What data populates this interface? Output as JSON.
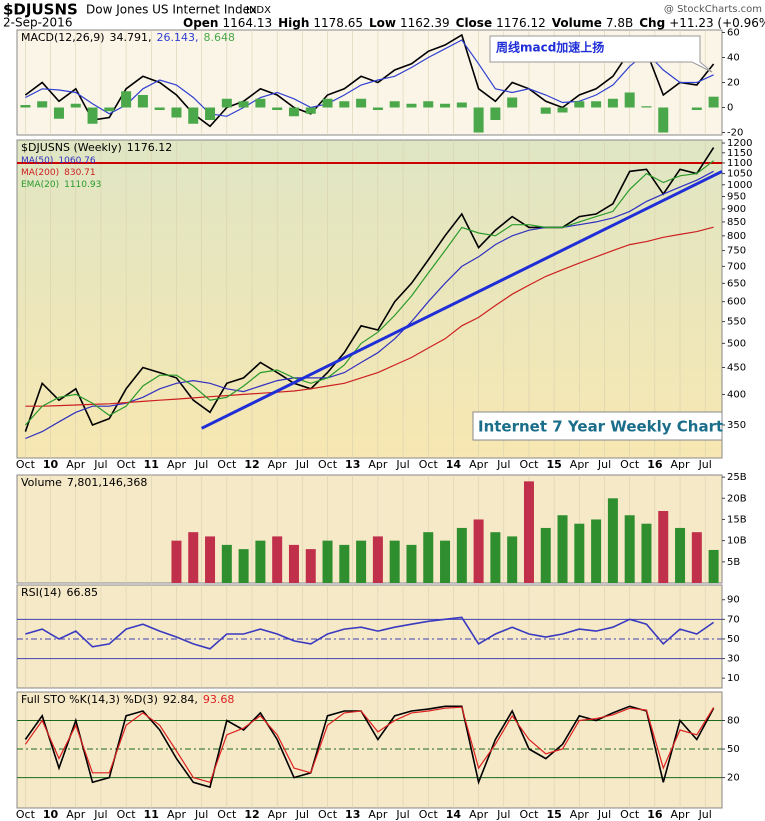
{
  "chart_data": {
    "type": "stock",
    "header": {
      "symbol": "$DJUSNS",
      "name": "Dow Jones US Internet Index",
      "exchange": "INDX",
      "date": "2-Sep-2016",
      "quote": [
        [
          "Open",
          "1164.13"
        ],
        [
          "High",
          "1178.65"
        ],
        [
          "Low",
          "1162.39"
        ],
        [
          "Close",
          "1176.12"
        ],
        [
          "Volume",
          "7.8B"
        ],
        [
          "Chg",
          "+11.23 (+0.96%)"
        ]
      ],
      "source": "@ StockCharts.com"
    },
    "x": [
      "2009-10",
      "2009-12",
      "2010-02",
      "2010-04",
      "2010-06",
      "2010-08",
      "2010-10",
      "2010-12",
      "2011-02",
      "2011-04",
      "2011-06",
      "2011-08",
      "2011-10",
      "2011-12",
      "2012-02",
      "2012-04",
      "2012-06",
      "2012-08",
      "2012-10",
      "2012-12",
      "2013-02",
      "2013-04",
      "2013-06",
      "2013-08",
      "2013-10",
      "2013-12",
      "2014-02",
      "2014-04",
      "2014-06",
      "2014-08",
      "2014-10",
      "2014-12",
      "2015-02",
      "2015-04",
      "2015-06",
      "2015-08",
      "2015-10",
      "2015-12",
      "2016-02",
      "2016-04",
      "2016-06",
      "2016-08"
    ],
    "xlim": [
      "2009-09",
      "2016-09"
    ],
    "xticks": [
      {
        "value": "2009-10",
        "label": "Oct"
      },
      {
        "value": "2010-01",
        "label": "10"
      },
      {
        "value": "2010-04",
        "label": "Apr"
      },
      {
        "value": "2010-07",
        "label": "Jul"
      },
      {
        "value": "2010-10",
        "label": "Oct"
      },
      {
        "value": "2011-01",
        "label": "11"
      },
      {
        "value": "2011-04",
        "label": "Apr"
      },
      {
        "value": "2011-07",
        "label": "Jul"
      },
      {
        "value": "2011-10",
        "label": "Oct"
      },
      {
        "value": "2012-01",
        "label": "12"
      },
      {
        "value": "2012-04",
        "label": "Apr"
      },
      {
        "value": "2012-07",
        "label": "Jul"
      },
      {
        "value": "2012-10",
        "label": "Oct"
      },
      {
        "value": "2013-01",
        "label": "13"
      },
      {
        "value": "2013-04",
        "label": "Apr"
      },
      {
        "value": "2013-07",
        "label": "Jul"
      },
      {
        "value": "2013-10",
        "label": "Oct"
      },
      {
        "value": "2014-01",
        "label": "14"
      },
      {
        "value": "2014-04",
        "label": "Apr"
      },
      {
        "value": "2014-07",
        "label": "Jul"
      },
      {
        "value": "2014-10",
        "label": "Oct"
      },
      {
        "value": "2015-01",
        "label": "15"
      },
      {
        "value": "2015-04",
        "label": "Apr"
      },
      {
        "value": "2015-07",
        "label": "Jul"
      },
      {
        "value": "2015-10",
        "label": "Oct"
      },
      {
        "value": "2016-01",
        "label": "16"
      },
      {
        "value": "2016-04",
        "label": "Apr"
      },
      {
        "value": "2016-07",
        "label": "Jul"
      }
    ],
    "panels": [
      {
        "legend": "MACD(12,26,9)",
        "ylim": [
          -22,
          62
        ],
        "yticks": [
          60,
          40,
          20,
          0,
          -20
        ],
        "background": "#fbf5e8",
        "annotation": "周线macd加速上扬",
        "series": [
          {
            "type": "line",
            "color": "#000000",
            "last_label": "34.791,",
            "values": [
              10,
              20,
              5,
              15,
              -10,
              -8,
              15,
              25,
              20,
              10,
              -5,
              -15,
              0,
              5,
              15,
              10,
              0,
              -5,
              10,
              15,
              25,
              20,
              30,
              35,
              45,
              50,
              58,
              15,
              5,
              20,
              15,
              5,
              0,
              10,
              15,
              25,
              45,
              45,
              10,
              20,
              18,
              34.791
            ]
          },
          {
            "type": "line",
            "color": "#3040d0",
            "last_label": "26.143,",
            "values": [
              8,
              15,
              14,
              12,
              3,
              -5,
              2,
              15,
              22,
              18,
              8,
              -5,
              -7,
              0,
              8,
              12,
              7,
              0,
              3,
              10,
              18,
              22,
              25,
              32,
              40,
              47,
              54,
              35,
              15,
              12,
              15,
              10,
              4,
              5,
              10,
              18,
              33,
              44,
              30,
              20,
              20,
              26.143
            ]
          },
          {
            "type": "bar",
            "color": "#4aa84a",
            "last_label": "8.648",
            "values": [
              2,
              5,
              -9,
              3,
              -13,
              -3,
              13,
              10,
              -2,
              -8,
              -13,
              -10,
              7,
              5,
              7,
              -2,
              -7,
              -5,
              7,
              5,
              7,
              -2,
              5,
              3,
              5,
              3,
              4,
              -20,
              -10,
              8,
              0,
              -5,
              -4,
              5,
              5,
              7,
              12,
              1,
              -20,
              0,
              -2,
              8.648
            ]
          }
        ]
      },
      {
        "log": true,
        "ylim": [
          303,
          1216
        ],
        "yticks": [
          1200,
          1150,
          1100,
          1050,
          1000,
          950,
          900,
          850,
          800,
          750,
          700,
          650,
          600,
          550,
          500,
          450,
          400,
          350
        ],
        "background": "#ece8bc",
        "annotation": "Internet 7 Year Weekly Chart",
        "resistance": {
          "value": 1100,
          "color": "#cc0000"
        },
        "trendline": {
          "x": [
            "2011-07",
            "2016-09"
          ],
          "values": [
            345,
            1060
          ],
          "color": "#1f2ed6"
        },
        "series": [
          {
            "type": "line",
            "name": "$DJUSNS (Weekly)",
            "color": "#000000",
            "last_label": "1176.12",
            "values": [
              340,
              420,
              390,
              410,
              350,
              360,
              410,
              450,
              440,
              430,
              390,
              370,
              420,
              430,
              460,
              440,
              420,
              410,
              440,
              480,
              540,
              530,
              600,
              650,
              720,
              800,
              880,
              760,
              820,
              870,
              830,
              830,
              830,
              870,
              880,
              920,
              1060,
              1070,
              960,
              1070,
              1050,
              1176.12
            ]
          },
          {
            "type": "line",
            "name": "MA(50)",
            "color": "#3030c0",
            "last_label": "1060.76",
            "values": [
              330,
              340,
              355,
              370,
              380,
              380,
              385,
              395,
              410,
              420,
              425,
              420,
              410,
              405,
              415,
              425,
              430,
              430,
              430,
              440,
              460,
              480,
              510,
              550,
              600,
              650,
              700,
              730,
              770,
              800,
              820,
              830,
              830,
              840,
              850,
              865,
              890,
              930,
              960,
              990,
              1020,
              1060.76
            ]
          },
          {
            "type": "line",
            "name": "MA(200)",
            "color": "#cc2020",
            "last_label": "830.71",
            "values": [
              380,
              380,
              381,
              382,
              383,
              384,
              386,
              388,
              390,
              392,
              394,
              396,
              398,
              400,
              402,
              404,
              406,
              410,
              415,
              420,
              430,
              440,
              455,
              470,
              490,
              510,
              540,
              560,
              590,
              620,
              645,
              670,
              690,
              710,
              730,
              750,
              770,
              780,
              795,
              805,
              815,
              830.71
            ]
          },
          {
            "type": "line",
            "name": "EMA(20)",
            "color": "#2a9a2a",
            "last_label": "1110.93",
            "values": [
              350,
              380,
              395,
              400,
              385,
              365,
              380,
              415,
              435,
              435,
              415,
              390,
              395,
              415,
              440,
              445,
              430,
              420,
              430,
              455,
              500,
              525,
              565,
              615,
              680,
              750,
              830,
              810,
              800,
              840,
              840,
              830,
              830,
              850,
              870,
              890,
              980,
              1050,
              1010,
              1040,
              1050,
              1110.93
            ]
          }
        ]
      },
      {
        "ylim": [
          0,
          25.5
        ],
        "yticks": [
          {
            "value": 25,
            "label": "25B"
          },
          {
            "value": 20,
            "label": "20B"
          },
          {
            "value": 15,
            "label": "15B"
          },
          {
            "value": 10,
            "label": "10B"
          },
          {
            "value": 5,
            "label": "5B"
          }
        ],
        "background": "#f6e9c8",
        "series": [
          {
            "type": "bar",
            "name": "Volume",
            "color": "#2f8f2f",
            "down_color": "#c0304a",
            "last_label": "7,801,146,368",
            "values": [
              null,
              null,
              null,
              null,
              null,
              null,
              null,
              null,
              null,
              10,
              12,
              11,
              9,
              8,
              10,
              11,
              9,
              8,
              10,
              9,
              10,
              11,
              10,
              9,
              12,
              10,
              13,
              15,
              12,
              11,
              24,
              13,
              16,
              14,
              15,
              20,
              16,
              14,
              17,
              13,
              12,
              7.801146368
            ]
          }
        ]
      },
      {
        "ylim": [
          0,
          105
        ],
        "yticks": [
          90,
          70,
          50,
          30,
          10
        ],
        "levels": [
          70,
          50,
          30
        ],
        "background": "#f6e9c8",
        "series": [
          {
            "type": "line",
            "name": "RSI(14)",
            "color": "#3a3ac0",
            "last_label": "66.85",
            "values": [
              55,
              60,
              50,
              58,
              42,
              45,
              60,
              65,
              58,
              52,
              45,
              40,
              55,
              55,
              60,
              55,
              48,
              45,
              55,
              60,
              62,
              58,
              62,
              65,
              68,
              70,
              72,
              45,
              55,
              62,
              55,
              52,
              55,
              60,
              58,
              62,
              70,
              65,
              45,
              60,
              55,
              66.85
            ]
          }
        ]
      },
      {
        "legend": "Full STO %K(14,3) %D(3)",
        "ylim": [
          -12,
          110
        ],
        "yticks": [
          80,
          50,
          20
        ],
        "levels": [
          80,
          50,
          20
        ],
        "background": "#f6e9c8",
        "series": [
          {
            "type": "line",
            "color": "#000000",
            "last_label": "92.84,",
            "values": [
              60,
              85,
              30,
              80,
              15,
              20,
              85,
              90,
              70,
              40,
              15,
              10,
              80,
              70,
              88,
              60,
              20,
              25,
              85,
              90,
              90,
              60,
              85,
              90,
              92,
              95,
              95,
              15,
              60,
              90,
              50,
              40,
              55,
              85,
              80,
              88,
              95,
              90,
              15,
              80,
              60,
              92.84
            ]
          },
          {
            "type": "line",
            "color": "#dd2020",
            "last_label": "93.68",
            "values": [
              55,
              80,
              40,
              75,
              25,
              25,
              75,
              88,
              75,
              48,
              20,
              15,
              65,
              72,
              85,
              65,
              30,
              25,
              75,
              88,
              90,
              68,
              80,
              88,
              90,
              93,
              94,
              30,
              55,
              85,
              60,
              45,
              50,
              80,
              82,
              86,
              93,
              91,
              30,
              70,
              65,
              93.68
            ]
          }
        ]
      }
    ]
  }
}
